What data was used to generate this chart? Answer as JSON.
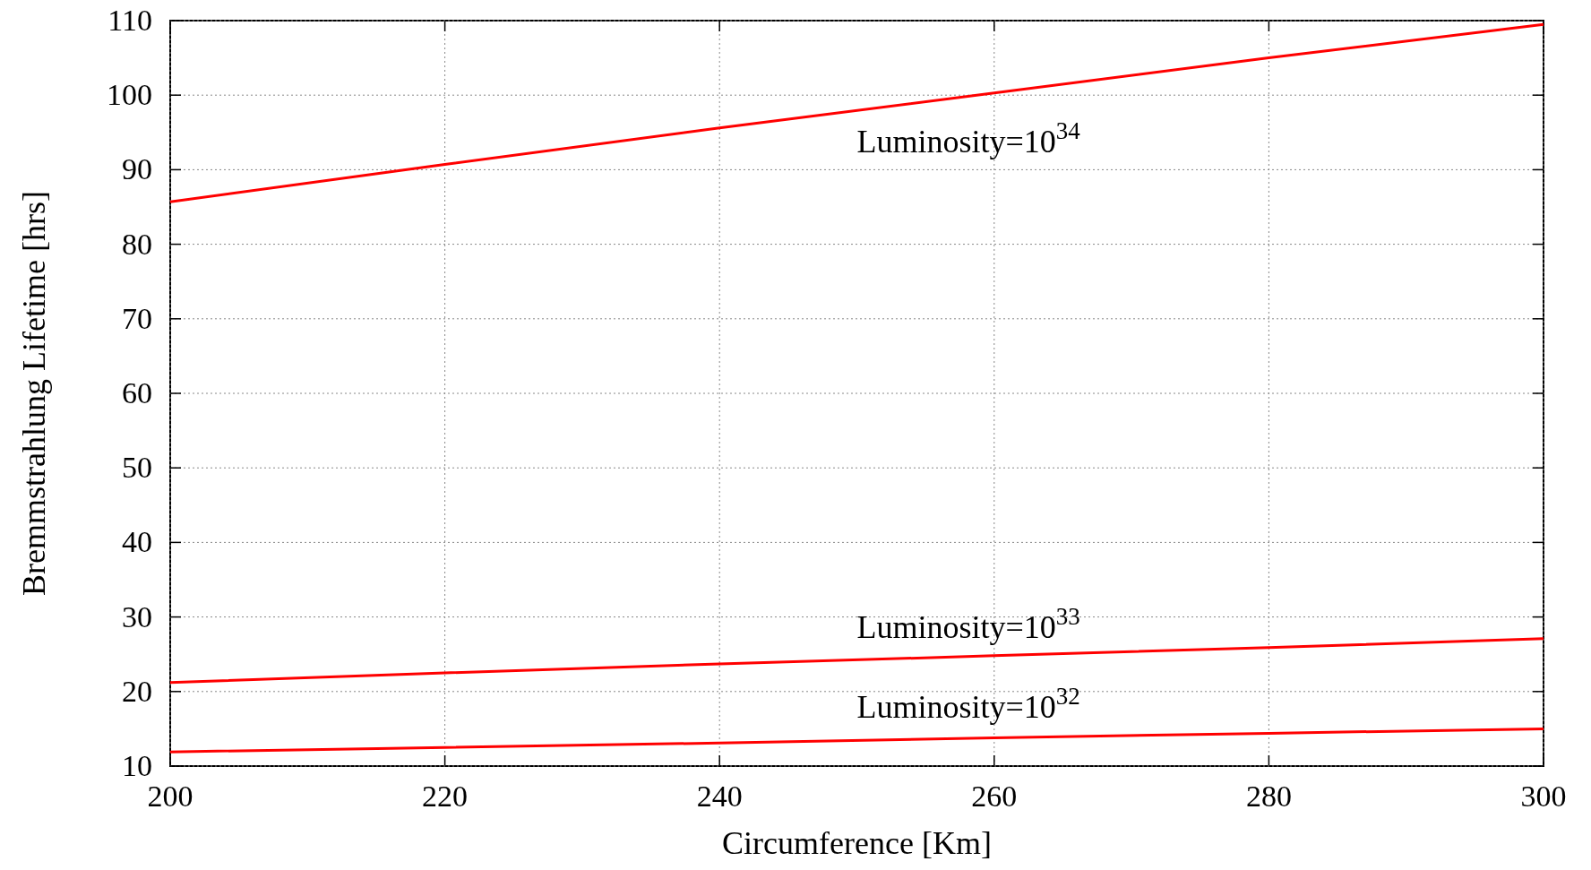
{
  "chart_data": {
    "type": "line",
    "xlabel": "Circumference [Km]",
    "ylabel": "Bremmstrahlung Lifetime [hrs]",
    "x": [
      200,
      220,
      240,
      260,
      280,
      300
    ],
    "series": [
      {
        "name": "Luminosity=10$^{34}$",
        "color": "#ff0000",
        "values": [
          85.7,
          90.7,
          95.6,
          100.3,
          105.0,
          109.5
        ]
      },
      {
        "name": "Luminosity=10$^{33}$",
        "color": "#ff0000",
        "values": [
          21.2,
          22.5,
          23.7,
          24.8,
          25.9,
          27.1
        ]
      },
      {
        "name": "Luminosity=10$^{32}$",
        "color": "#ff0000",
        "values": [
          11.9,
          12.5,
          13.1,
          13.8,
          14.4,
          15.0
        ]
      }
    ],
    "xlim": [
      200,
      300
    ],
    "xticks": [
      200,
      220,
      240,
      260,
      280,
      300
    ],
    "ylim": [
      10,
      110
    ],
    "yticks": [
      10,
      20,
      30,
      40,
      50,
      60,
      70,
      80,
      90,
      100,
      110
    ],
    "grid": true,
    "line_style": "solid",
    "marker": "none"
  }
}
